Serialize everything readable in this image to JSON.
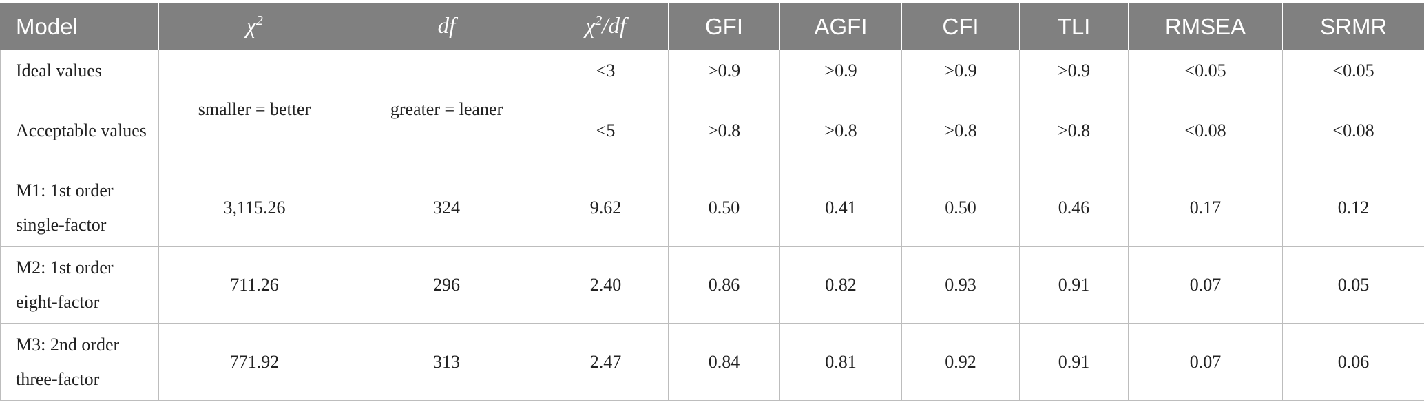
{
  "header": {
    "model": "Model",
    "chi2_symbol": "χ",
    "chi2_sup": "2",
    "df": "df",
    "chi2df_symbol": "χ",
    "chi2df_sup": "2",
    "chi2df_suffix": "/df",
    "gfi": "GFI",
    "agfi": "AGFI",
    "cfi": "CFI",
    "tli": "TLI",
    "rmsea": "RMSEA",
    "srmr": "SRMR"
  },
  "colors": {
    "header_bg": "#808080",
    "header_text": "#ffffff",
    "grid": "#bdbdbd"
  },
  "ideal": {
    "label": "Ideal values",
    "chi2": "smaller = better",
    "df": "greater = leaner",
    "chi2df": "<3",
    "gfi": ">0.9",
    "agfi": ">0.9",
    "cfi": ">0.9",
    "tli": ">0.9",
    "rmsea": "<0.05",
    "srmr": "<0.05"
  },
  "acceptable": {
    "label": "Acceptable values",
    "chi2df": "<5",
    "gfi": ">0.8",
    "agfi": ">0.8",
    "cfi": ">0.8",
    "tli": ">0.8",
    "rmsea": "<0.08",
    "srmr": "<0.08"
  },
  "models": [
    {
      "label": "M1: 1st order single-factor",
      "chi2": "3,115.26",
      "df": "324",
      "chi2df": "9.62",
      "gfi": "0.50",
      "agfi": "0.41",
      "cfi": "0.50",
      "tli": "0.46",
      "rmsea": "0.17",
      "srmr": "0.12"
    },
    {
      "label": "M2: 1st order eight-factor",
      "chi2": "711.26",
      "df": "296",
      "chi2df": "2.40",
      "gfi": "0.86",
      "agfi": "0.82",
      "cfi": "0.93",
      "tli": "0.91",
      "rmsea": "0.07",
      "srmr": "0.05"
    },
    {
      "label": "M3: 2nd order three-factor",
      "chi2": "771.92",
      "df": "313",
      "chi2df": "2.47",
      "gfi": "0.84",
      "agfi": "0.81",
      "cfi": "0.92",
      "tli": "0.91",
      "rmsea": "0.07",
      "srmr": "0.06"
    }
  ]
}
